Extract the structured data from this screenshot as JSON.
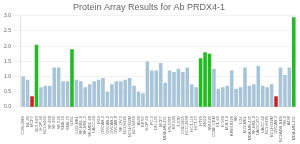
{
  "chart_data": {
    "type": "bar",
    "title": "Protein Array Results for Ab PRDX4-1",
    "categories": [
      "COS-ORS",
      "NL-40",
      "MCF7",
      "NCI-H23",
      "HOP-92",
      "NCI-H460",
      "SF-268",
      "SF-295",
      "SF-539",
      "SNB-19",
      "SNB-75",
      "U251",
      "LOX-MBL",
      "SK-MEL-2",
      "SK-MEL-5",
      "SK-MEL-28",
      "UACC-62",
      "M14",
      "OVCAR-3",
      "OVCAR-4",
      "OVCAR-5",
      "OVCAR-8",
      "SK-OV-3",
      "NCI-H226",
      "NCI-H322M",
      "NCI-H460",
      "A549",
      "EKVX",
      "HOP-62",
      "PC-3",
      "DU-145",
      "MCF7",
      "MDA-MB-231",
      "HS-578T",
      "BT-549",
      "T-47D",
      "COLO205",
      "HCC-2998",
      "HCT-116",
      "HCT-15",
      "HT29",
      "KM12",
      "SW-620",
      "CCRF-CEM",
      "HL-60",
      "K-562",
      "MOLT-4",
      "RPMI-8226",
      "SR",
      "LOX",
      "M19-MEL",
      "MDA-MB-435",
      "SK-MEL-2",
      "UACC-257",
      "UACC-62",
      "NCI-H226",
      "NCI-H322M",
      "OVCAR-3",
      "NCI/ADR-RES",
      "786-0",
      "A498",
      "MDA-MB-231"
    ],
    "values": [
      1.0,
      0.9,
      0.35,
      2.05,
      0.65,
      0.7,
      0.7,
      1.3,
      1.3,
      0.85,
      0.85,
      1.9,
      0.9,
      0.85,
      0.65,
      0.75,
      0.85,
      0.9,
      0.95,
      0.5,
      0.75,
      0.85,
      0.85,
      0.9,
      0.95,
      0.7,
      0.5,
      0.45,
      1.5,
      1.2,
      1.2,
      1.45,
      0.8,
      1.2,
      1.15,
      1.25,
      1.15,
      1.3,
      0.75,
      0.65,
      1.6,
      1.8,
      1.75,
      1.25,
      0.6,
      0.65,
      0.7,
      1.2,
      0.6,
      0.65,
      1.3,
      0.7,
      0.75,
      1.35,
      0.7,
      0.65,
      0.75,
      0.35,
      1.3,
      1.05,
      1.3,
      2.95
    ],
    "colors": [
      "#a8c4d8",
      "#a8c4d8",
      "#cc2222",
      "#22bb22",
      "#a8c4d8",
      "#a8c4d8",
      "#a8c4d8",
      "#a8c4d8",
      "#a8c4d8",
      "#a8c4d8",
      "#a8c4d8",
      "#22bb22",
      "#a8c4d8",
      "#a8c4d8",
      "#a8c4d8",
      "#a8c4d8",
      "#a8c4d8",
      "#a8c4d8",
      "#a8c4d8",
      "#a8c4d8",
      "#a8c4d8",
      "#a8c4d8",
      "#a8c4d8",
      "#a8c4d8",
      "#a8c4d8",
      "#a8c4d8",
      "#a8c4d8",
      "#a8c4d8",
      "#a8c4d8",
      "#a8c4d8",
      "#a8c4d8",
      "#a8c4d8",
      "#a8c4d8",
      "#a8c4d8",
      "#a8c4d8",
      "#a8c4d8",
      "#a8c4d8",
      "#a8c4d8",
      "#a8c4d8",
      "#a8c4d8",
      "#22bb22",
      "#22bb22",
      "#22bb22",
      "#a8c4d8",
      "#a8c4d8",
      "#a8c4d8",
      "#a8c4d8",
      "#a8c4d8",
      "#a8c4d8",
      "#a8c4d8",
      "#a8c4d8",
      "#a8c4d8",
      "#a8c4d8",
      "#a8c4d8",
      "#a8c4d8",
      "#a8c4d8",
      "#a8c4d8",
      "#cc2222",
      "#a8c4d8",
      "#a8c4d8",
      "#a8c4d8",
      "#22bb22"
    ],
    "ylim": [
      0,
      3.0
    ],
    "yticks": [
      {
        "value": 0,
        "label": "0.0"
      },
      0.5,
      {
        "value": 1,
        "label": "1.0"
      },
      1.5,
      {
        "value": 2,
        "label": "2.0"
      },
      2.5,
      {
        "value": 3,
        "label": "3.0"
      }
    ],
    "grid": true
  }
}
